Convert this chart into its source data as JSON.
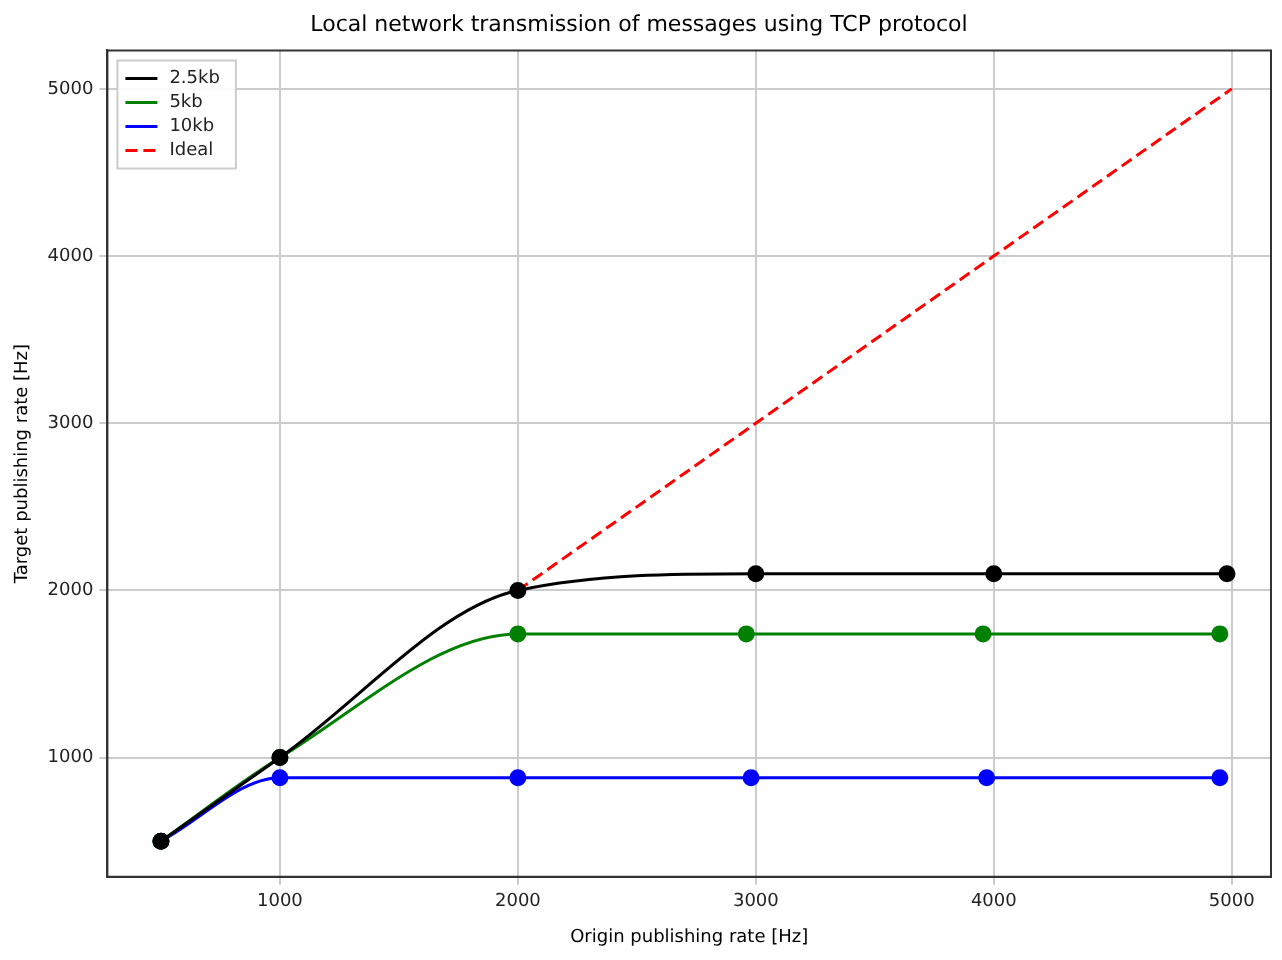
{
  "chart_data": {
    "type": "line",
    "title": "Local network transmission of messages using TCP protocol",
    "xlabel": "Origin publishing rate [Hz]",
    "ylabel": "Target publishing rate [Hz]",
    "xlim": [
      275,
      5165
    ],
    "ylim": [
      287,
      5230
    ],
    "xticks": [
      1000,
      2000,
      3000,
      4000,
      5000
    ],
    "yticks": [
      1000,
      2000,
      3000,
      4000,
      5000
    ],
    "grid": true,
    "legend": "top left",
    "series": [
      {
        "name": "2.5kb",
        "color": "#000000",
        "marker": "circle",
        "line_style": "solid",
        "x": [
          500,
          1000,
          2000,
          3000,
          4000,
          4980
        ],
        "values": [
          500,
          1000,
          2000,
          2100,
          2100,
          2100
        ]
      },
      {
        "name": "5kb",
        "color": "#008000",
        "marker": "circle",
        "line_style": "solid",
        "x": [
          500,
          1000,
          2000,
          2960,
          3955,
          4950
        ],
        "values": [
          500,
          1000,
          1740,
          1740,
          1740,
          1740
        ]
      },
      {
        "name": "10kb",
        "color": "#0000ff",
        "marker": "circle",
        "line_style": "solid",
        "x": [
          500,
          1000,
          2000,
          2980,
          3970,
          4950
        ],
        "values": [
          500,
          880,
          880,
          880,
          880,
          880
        ]
      },
      {
        "name": "Ideal",
        "color": "#ff0000",
        "marker": "none",
        "line_style": "dashed",
        "x": [
          2000,
          3000,
          4000,
          5000
        ],
        "values": [
          2000,
          3000,
          4000,
          5000
        ]
      }
    ]
  }
}
